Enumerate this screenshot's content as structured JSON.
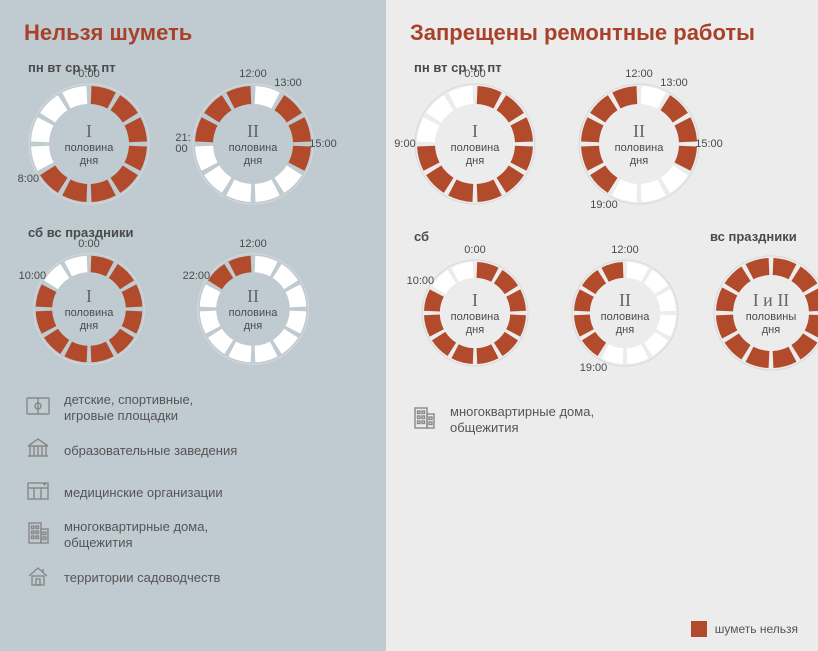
{
  "colors": {
    "leftBg": "#bfcbd1",
    "rightBg": "#ececec",
    "titleLeft": "#a8412a",
    "titleRight": "#a8412a",
    "accent": "#b24a2c",
    "segOff": "#ffffff",
    "ringBorder": "#d8d8d8",
    "text": "#4a4a4a",
    "iconStroke": "#888888"
  },
  "ringStyle": {
    "outerR": 58,
    "innerR": 40,
    "segments": 12,
    "gapDeg": 5
  },
  "left": {
    "title": "Нельзя шуметь",
    "block1": {
      "days": "пн  вт  ср  чт  пт",
      "rings": [
        {
          "roman": "I",
          "sub1": "половина",
          "sub2": "дня",
          "pattern": [
            1,
            1,
            1,
            1,
            1,
            1,
            1,
            1,
            0,
            0,
            0,
            0
          ],
          "labels": [
            {
              "t": "0:00",
              "h": 0
            },
            {
              "t": "8:00",
              "h": 8,
              "side": "left"
            }
          ]
        },
        {
          "roman": "II",
          "sub1": "половина",
          "sub2": "дня",
          "pattern": [
            0,
            1,
            1,
            1,
            0,
            0,
            0,
            0,
            0,
            1,
            1,
            1
          ],
          "labels": [
            {
              "t": "12:00",
              "h": 0
            },
            {
              "t": "13:00",
              "h": 1,
              "side": "right"
            },
            {
              "t": "15:00",
              "h": 3,
              "side": "right"
            },
            {
              "t": "21:\n00",
              "h": 9,
              "side": "left"
            }
          ]
        }
      ]
    },
    "block2": {
      "days": "сб  вс  праздники",
      "rings": [
        {
          "roman": "I",
          "sub1": "половина",
          "sub2": "дня",
          "pattern": [
            1,
            1,
            1,
            1,
            1,
            1,
            1,
            1,
            1,
            1,
            0,
            0
          ],
          "labels": [
            {
              "t": "0:00",
              "h": 0
            },
            {
              "t": "10:00",
              "h": 10,
              "side": "left"
            }
          ]
        },
        {
          "roman": "II",
          "sub1": "половина",
          "sub2": "дня",
          "pattern": [
            0,
            0,
            0,
            0,
            0,
            0,
            0,
            0,
            0,
            0,
            1,
            1
          ],
          "labels": [
            {
              "t": "12:00",
              "h": 0
            },
            {
              "t": "22:00",
              "h": 10,
              "side": "left"
            }
          ]
        }
      ]
    },
    "icons": [
      {
        "name": "playground-icon",
        "label": "детские, спортивные,\nигровые площадки"
      },
      {
        "name": "education-icon",
        "label": "образовательные заведения"
      },
      {
        "name": "medical-icon",
        "label": "медицинские организации"
      },
      {
        "name": "apartment-icon",
        "label": "многоквартирные дома,\nобщежития"
      },
      {
        "name": "house-icon",
        "label": "территории садоводчеств"
      }
    ]
  },
  "right": {
    "title": "Запрещены ремонтные работы",
    "block1": {
      "days": "пн  вт  ср  чт  пт",
      "rings": [
        {
          "roman": "I",
          "sub1": "половина",
          "sub2": "дня",
          "pattern": [
            1,
            1,
            1,
            1,
            1,
            1,
            1,
            1,
            1,
            0,
            0,
            0
          ],
          "labels": [
            {
              "t": "0:00",
              "h": 0
            },
            {
              "t": "9:00",
              "h": 9,
              "side": "left"
            }
          ]
        },
        {
          "roman": "II",
          "sub1": "половина",
          "sub2": "дня",
          "pattern": [
            0,
            1,
            1,
            1,
            0,
            0,
            0,
            1,
            1,
            1,
            1,
            1
          ],
          "labels": [
            {
              "t": "12:00",
              "h": 0
            },
            {
              "t": "13:00",
              "h": 1,
              "side": "right"
            },
            {
              "t": "15:00",
              "h": 3,
              "side": "right"
            },
            {
              "t": "19:00",
              "h": 7,
              "side": "bottom"
            }
          ]
        }
      ]
    },
    "block2": {
      "daysLeft": "сб",
      "daysRight": "вс  праздники",
      "ringsLeft": [
        {
          "roman": "I",
          "sub1": "половина",
          "sub2": "дня",
          "pattern": [
            1,
            1,
            1,
            1,
            1,
            1,
            1,
            1,
            1,
            1,
            0,
            0
          ],
          "labels": [
            {
              "t": "0:00",
              "h": 0
            },
            {
              "t": "10:00",
              "h": 10,
              "side": "left"
            }
          ]
        },
        {
          "roman": "II",
          "sub1": "половина",
          "sub2": "дня",
          "pattern": [
            0,
            0,
            0,
            0,
            0,
            0,
            0,
            1,
            1,
            1,
            1,
            1
          ],
          "labels": [
            {
              "t": "12:00",
              "h": 0
            },
            {
              "t": "19:00",
              "h": 7,
              "side": "bottom"
            }
          ]
        }
      ],
      "ringRight": {
        "roman": "I и II",
        "sub1": "половины",
        "sub2": "дня",
        "pattern": [
          1,
          1,
          1,
          1,
          1,
          1,
          1,
          1,
          1,
          1,
          1,
          1
        ],
        "labels": []
      }
    },
    "icons": [
      {
        "name": "apartment-icon",
        "label": "многоквартирные дома,\nобщежития"
      }
    ]
  },
  "legend": "шуметь нельзя"
}
